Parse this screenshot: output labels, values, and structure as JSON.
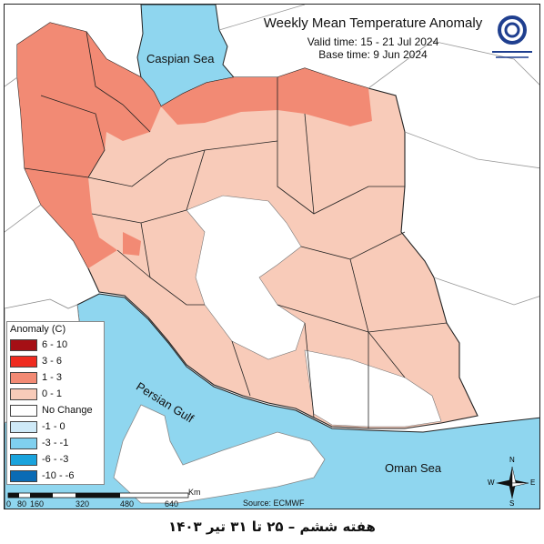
{
  "title": "Weekly Mean Temperature Anomaly",
  "valid_time": "Valid time: 15 - 21 Jul 2024",
  "base_time": "Base time: 9 Jun 2024",
  "labels": {
    "caspian": "Caspian Sea",
    "persian_gulf": "Persian Gulf",
    "oman_sea": "Oman Sea"
  },
  "legend": {
    "title": "Anomaly (C)",
    "items": [
      {
        "label": "6 - 10",
        "color": "#a50f15"
      },
      {
        "label": "3 - 6",
        "color": "#ef2b1f"
      },
      {
        "label": "1 - 3",
        "color": "#f28a74"
      },
      {
        "label": "0 - 1",
        "color": "#f8cbb9"
      },
      {
        "label": "No Change",
        "color": "#ffffff"
      },
      {
        "label": "-1 - 0",
        "color": "#cfeaf8"
      },
      {
        "label": "-3 - -1",
        "color": "#7fd0ef"
      },
      {
        "label": "-6 - -3",
        "color": "#19a3dd"
      },
      {
        "label": "-10 - -6",
        "color": "#0a6bb5"
      }
    ]
  },
  "scale": {
    "unit": "Km",
    "ticks": [
      "0",
      "80",
      "160",
      "320",
      "480",
      "640"
    ]
  },
  "compass": {
    "n": "N",
    "s": "S",
    "e": "E",
    "w": "W"
  },
  "source": "Source: ECMWF",
  "footer": "هفته ششم – ۲۵ تا ۳۱ تیر ۱۴۰۳",
  "colors": {
    "water": "#8fd6ef",
    "land_light": "#f8cbb9",
    "land_strong": "#f28a74",
    "no_change": "#ffffff"
  }
}
